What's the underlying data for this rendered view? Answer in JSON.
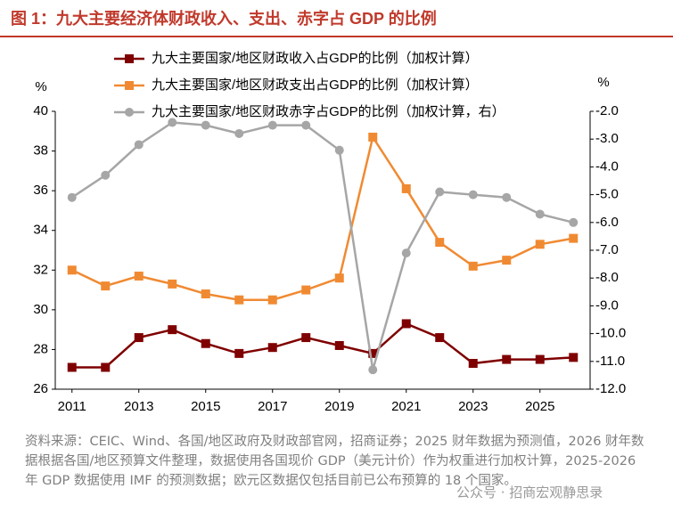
{
  "chart_data": {
    "type": "line",
    "title": "图 1：九大主要经济体财政收入、支出、赤字占 GDP 的比例",
    "source": "资料来源：CEIC、Wind、各国/地区政府及财政部官网，招商证券；2025 财年数据为预测值，2026 财年数据根据各国/地区预算文件整理，数据使用各国现价 GDP（美元计价）作为权重进行加权计算，2025-2026 年 GDP 数据使用 IMF 的预测数据；欧元区数据仅包括目前已公布预算的 18 个国家。",
    "watermark": "公众号 · 招商宏观静思录",
    "y_label": "%",
    "y2_label": "%",
    "legend": "top",
    "x": [
      2011,
      2012,
      2013,
      2014,
      2015,
      2016,
      2017,
      2018,
      2019,
      2020,
      2021,
      2022,
      2023,
      2024,
      2025,
      2026
    ],
    "xlim": [
      2010.5,
      2026.5
    ],
    "xticks": [
      2011,
      2013,
      2015,
      2017,
      2019,
      2021,
      2023,
      2025
    ],
    "ylim": [
      26,
      40
    ],
    "yticks": [
      26,
      28,
      30,
      32,
      34,
      36,
      38,
      40
    ],
    "y2lim": [
      -12,
      -2
    ],
    "y2ticks": [
      {
        "value": -12,
        "label": "-12.0"
      },
      {
        "value": -11,
        "label": "-11.0"
      },
      {
        "value": -10,
        "label": "-10.0"
      },
      {
        "value": -9,
        "label": "-9.0"
      },
      {
        "value": -8,
        "label": "-8.0"
      },
      {
        "value": -7,
        "label": "-7.0"
      },
      {
        "value": -6,
        "label": "-6.0"
      },
      {
        "value": -5,
        "label": "-5.0"
      },
      {
        "value": -4,
        "label": "-4.0"
      },
      {
        "value": -3,
        "label": "-3.0"
      },
      {
        "value": -2,
        "label": "-2.0"
      }
    ],
    "series": [
      {
        "name": "九大主要国家/地区财政收入占GDP的比例（加权计算）",
        "color": "#7f0000",
        "marker": "square",
        "values": [
          27.1,
          27.1,
          28.6,
          29.0,
          28.3,
          27.8,
          28.1,
          28.6,
          28.2,
          27.8,
          29.3,
          28.6,
          27.3,
          27.5,
          27.5,
          27.6
        ]
      },
      {
        "name": "九大主要国家/地区财政支出占GDP的比例（加权计算）",
        "color": "#f08a32",
        "marker": "square",
        "values": [
          32.0,
          31.2,
          31.7,
          31.3,
          30.8,
          30.5,
          30.5,
          31.0,
          31.6,
          38.7,
          36.1,
          33.4,
          32.2,
          32.5,
          33.3,
          33.6
        ]
      },
      {
        "name": "九大主要国家/地区财政赤字占GDP的比例（加权计算，右）",
        "color": "#a6a6a6",
        "marker": "circle",
        "axis": "y2",
        "values": [
          -5.1,
          -4.3,
          -3.2,
          -2.4,
          -2.5,
          -2.8,
          -2.5,
          -2.5,
          -3.4,
          -11.3,
          -7.1,
          -4.9,
          -5.0,
          -5.1,
          -5.7,
          -6.0
        ]
      }
    ]
  }
}
